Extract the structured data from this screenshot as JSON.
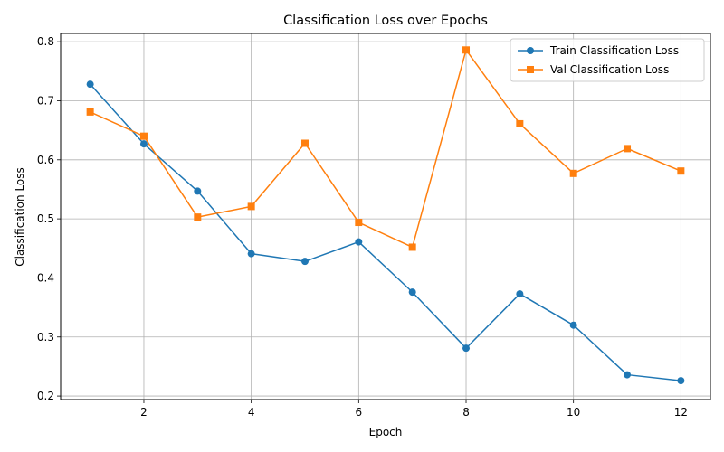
{
  "chart_data": {
    "type": "line",
    "title": "Classification Loss over Epochs",
    "xlabel": "Epoch",
    "ylabel": "Classification Loss",
    "x": [
      1,
      2,
      3,
      4,
      5,
      6,
      7,
      8,
      9,
      10,
      11,
      12
    ],
    "xlim": [
      0.45,
      12.55
    ],
    "ylim": [
      0.194,
      0.814
    ],
    "x_ticks": [
      2,
      4,
      6,
      8,
      10,
      12
    ],
    "y_ticks": [
      0.2,
      0.3,
      0.4,
      0.5,
      0.6,
      0.7,
      0.8
    ],
    "grid": true,
    "legend_position": "top-right",
    "series": [
      {
        "name": "Train Classification Loss",
        "color": "#1f77b4",
        "marker": "circle",
        "values": [
          0.728,
          0.627,
          0.547,
          0.441,
          0.428,
          0.461,
          0.376,
          0.281,
          0.373,
          0.32,
          0.236,
          0.226
        ]
      },
      {
        "name": "Val Classification Loss",
        "color": "#ff7f0e",
        "marker": "square",
        "values": [
          0.681,
          0.64,
          0.503,
          0.521,
          0.628,
          0.494,
          0.452,
          0.786,
          0.661,
          0.577,
          0.619,
          0.581
        ]
      }
    ]
  }
}
